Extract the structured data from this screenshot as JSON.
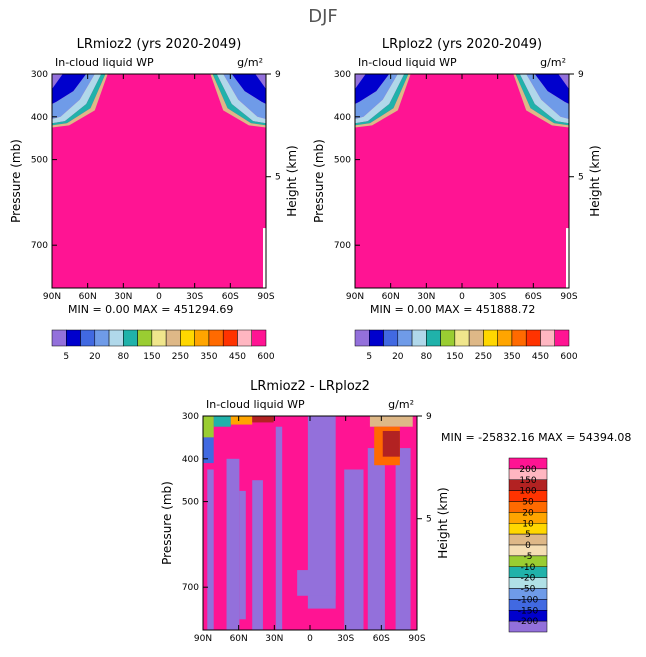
{
  "figure_title": "DJF",
  "chart_data": [
    {
      "type": "heatmap",
      "title": "LRmioz2 (yrs 2020-2049)",
      "field_label": "In-cloud liquid WP",
      "units": "g/m²",
      "ylabel": "Pressure (mb)",
      "y2label": "Height (km)",
      "xticks": [
        "90N",
        "60N",
        "30N",
        "0",
        "30S",
        "60S",
        "90S"
      ],
      "yticks": [
        "300",
        "400",
        "500",
        "700"
      ],
      "y2ticks": [
        "9",
        "5"
      ],
      "stats": {
        "min_label": "MIN =",
        "min": "0.00",
        "max_label": "MAX =",
        "max": "451294.69"
      },
      "colorbar_labels": [
        "5",
        "20",
        "80",
        "150",
        "250",
        "350",
        "450",
        "600"
      ],
      "ylim": [
        850,
        300
      ]
    },
    {
      "type": "heatmap",
      "title": "LRploz2 (yrs 2020-2049)",
      "field_label": "In-cloud liquid WP",
      "units": "g/m²",
      "ylabel": "Pressure (mb)",
      "y2label": "Height (km)",
      "xticks": [
        "90N",
        "60N",
        "30N",
        "0",
        "30S",
        "60S",
        "90S"
      ],
      "yticks": [
        "300",
        "400",
        "500",
        "700"
      ],
      "y2ticks": [
        "9",
        "5"
      ],
      "stats": {
        "min_label": "MIN =",
        "min": "0.00",
        "max_label": "MAX =",
        "max": "451888.72"
      },
      "colorbar_labels": [
        "5",
        "20",
        "80",
        "150",
        "250",
        "350",
        "450",
        "600"
      ],
      "ylim": [
        850,
        300
      ]
    },
    {
      "type": "heatmap",
      "title": "LRmioz2 - LRploz2",
      "field_label": "In-cloud liquid WP",
      "units": "g/m²",
      "ylabel": "Pressure (mb)",
      "y2label": "Height (km)",
      "xticks": [
        "90N",
        "60N",
        "30N",
        "0",
        "30S",
        "60S",
        "90S"
      ],
      "yticks": [
        "300",
        "400",
        "500",
        "700"
      ],
      "y2ticks": [
        "9",
        "5"
      ],
      "stats": {
        "min_label": "MIN =",
        "min": "-25832.16",
        "max_label": "MAX =",
        "max": "54394.08"
      },
      "colorbar_labels": [
        "200",
        "150",
        "100",
        "50",
        "20",
        "10",
        "5",
        "0",
        "-5",
        "-10",
        "-20",
        "-50",
        "-100",
        "-150",
        "-200"
      ],
      "ylim": [
        850,
        300
      ]
    }
  ],
  "colors": {
    "seq": [
      "#9370db",
      "#0000cd",
      "#4169e1",
      "#6f9be8",
      "#b0d8ea",
      "#20b2aa",
      "#9acd32",
      "#f0e68c",
      "#deb887",
      "#ffd700",
      "#ffa500",
      "#ff6a00",
      "#ff3300",
      "#ffb6c1",
      "#ff1493"
    ],
    "diff": [
      "#ff1493",
      "#ffb6c1",
      "#b22222",
      "#ff3300",
      "#ff6a00",
      "#ffa500",
      "#ffd700",
      "#deb887",
      "#f5deb3",
      "#9acd32",
      "#20b2aa",
      "#b0e0e6",
      "#6f9be8",
      "#4169e1",
      "#0000cd",
      "#9370db"
    ]
  }
}
